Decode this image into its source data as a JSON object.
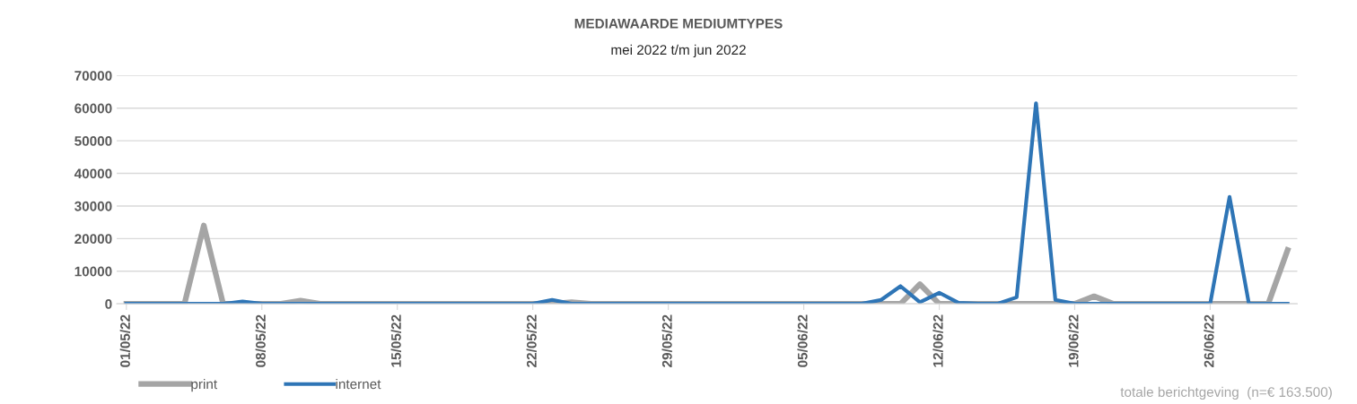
{
  "chart_data": {
    "type": "line",
    "title": "MEDIAWAARDE MEDIUMTYPES",
    "subtitle": "mei 2022 t/m jun 2022",
    "categories": [
      "01/05/22",
      null,
      null,
      null,
      null,
      null,
      null,
      "08/05/22",
      null,
      null,
      null,
      null,
      null,
      null,
      "15/05/22",
      null,
      null,
      null,
      null,
      null,
      null,
      "22/05/22",
      null,
      null,
      null,
      null,
      null,
      null,
      "29/05/22",
      null,
      null,
      null,
      null,
      null,
      null,
      "05/06/22",
      null,
      null,
      null,
      null,
      null,
      null,
      "12/06/22",
      null,
      null,
      null,
      null,
      null,
      null,
      "19/06/22",
      null,
      null,
      null,
      null,
      null,
      null,
      "26/06/22",
      null,
      null,
      null,
      null
    ],
    "series": [
      {
        "name": "print",
        "color": "#a5a5a5",
        "values": [
          0,
          0,
          0,
          0,
          24000,
          0,
          0,
          0,
          0,
          1000,
          0,
          0,
          0,
          0,
          0,
          0,
          0,
          0,
          0,
          0,
          0,
          0,
          0,
          500,
          0,
          0,
          0,
          0,
          0,
          0,
          0,
          0,
          0,
          0,
          0,
          0,
          0,
          0,
          0,
          0,
          0,
          6000,
          0,
          0,
          0,
          0,
          0,
          0,
          0,
          0,
          2300,
          0,
          0,
          0,
          0,
          0,
          0,
          0,
          0,
          0,
          16500
        ]
      },
      {
        "name": "internet",
        "color": "#2e75b6",
        "values": [
          0,
          0,
          0,
          0,
          0,
          0,
          700,
          0,
          0,
          0,
          0,
          0,
          0,
          0,
          0,
          0,
          0,
          0,
          0,
          0,
          0,
          0,
          1200,
          0,
          0,
          0,
          0,
          0,
          0,
          0,
          0,
          0,
          0,
          0,
          0,
          0,
          0,
          0,
          0,
          1200,
          5400,
          500,
          3400,
          300,
          0,
          0,
          2000,
          61500,
          1200,
          0,
          0,
          0,
          0,
          0,
          0,
          0,
          0,
          32800,
          0,
          0,
          0
        ]
      }
    ],
    "ylim": [
      0,
      70000
    ],
    "yticks": [
      0,
      10000,
      20000,
      30000,
      40000,
      50000,
      60000,
      70000
    ],
    "grid": "y",
    "legend": "bottom left",
    "marker": "none",
    "line_style": "solid",
    "annotations": [
      "totale berichtgeving  (n=€ 163.500)"
    ]
  }
}
